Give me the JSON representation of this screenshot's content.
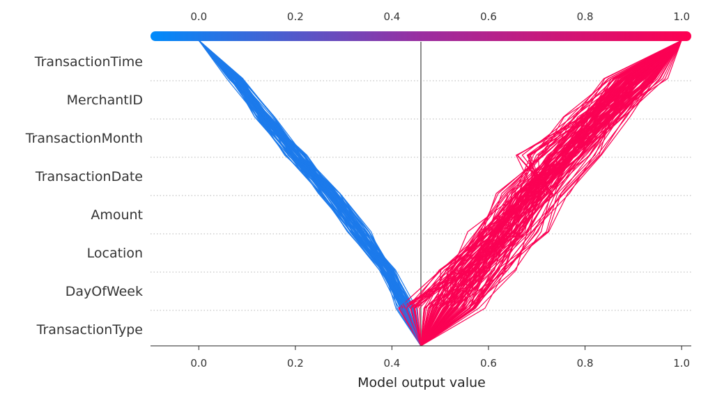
{
  "chart_data": {
    "type": "line",
    "subtype": "shap-decision-plot",
    "xlabel": "Model output value",
    "xlim": [
      -0.1,
      1.02
    ],
    "base_value": 0.46,
    "xticks": [
      0.0,
      0.2,
      0.4,
      0.6,
      0.8,
      1.0
    ],
    "xtick_labels": [
      "0.0",
      "0.2",
      "0.4",
      "0.6",
      "0.8",
      "1.0"
    ],
    "top_xtick_labels": [
      "0.0",
      "0.2",
      "0.4",
      "0.6",
      "0.8",
      "1.0"
    ],
    "colorbar": {
      "low_color": "#008bfb",
      "mid_color": "#9a2ea0",
      "high_color": "#ff0051",
      "range": [
        -0.1,
        1.02
      ],
      "position": "top"
    },
    "features_top_to_bottom": [
      "TransactionTime",
      "MerchantID",
      "TransactionMonth",
      "TransactionDate",
      "Amount",
      "Location",
      "DayOfWeek",
      "TransactionType"
    ],
    "path_point_order": "bottom (TransactionType) to top (TransactionTime): base, after TransactionType, DayOfWeek, Location, Amount, TransactionDate, TransactionMonth, MerchantID, TransactionTime",
    "representative_paths": {
      "low_class": [
        [
          0.46,
          0.43,
          0.39,
          0.33,
          0.27,
          0.2,
          0.135,
          0.075,
          0.0
        ],
        [
          0.46,
          0.435,
          0.395,
          0.34,
          0.28,
          0.21,
          0.14,
          0.08,
          0.0
        ],
        [
          0.46,
          0.425,
          0.385,
          0.325,
          0.265,
          0.195,
          0.13,
          0.072,
          0.0
        ],
        [
          0.46,
          0.44,
          0.4,
          0.345,
          0.285,
          0.215,
          0.145,
          0.082,
          0.0
        ],
        [
          0.46,
          0.42,
          0.38,
          0.32,
          0.26,
          0.19,
          0.125,
          0.068,
          0.0
        ],
        [
          0.46,
          0.432,
          0.392,
          0.336,
          0.276,
          0.206,
          0.138,
          0.078,
          0.0
        ]
      ],
      "high_class": [
        [
          0.46,
          0.51,
          0.56,
          0.62,
          0.67,
          0.74,
          0.82,
          0.9,
          1.0
        ],
        [
          0.46,
          0.53,
          0.58,
          0.64,
          0.69,
          0.76,
          0.83,
          0.91,
          1.0
        ],
        [
          0.46,
          0.49,
          0.54,
          0.6,
          0.66,
          0.73,
          0.8,
          0.88,
          1.0
        ],
        [
          0.46,
          0.52,
          0.59,
          0.66,
          0.72,
          0.78,
          0.85,
          0.92,
          1.0
        ],
        [
          0.46,
          0.5,
          0.55,
          0.61,
          0.68,
          0.75,
          0.81,
          0.89,
          1.0
        ],
        [
          0.46,
          0.43,
          0.52,
          0.6,
          0.68,
          0.76,
          0.82,
          0.9,
          1.0
        ],
        [
          0.46,
          0.44,
          0.55,
          0.66,
          0.72,
          0.79,
          0.86,
          0.93,
          1.0
        ],
        [
          0.46,
          0.55,
          0.62,
          0.67,
          0.72,
          0.68,
          0.79,
          0.88,
          1.0
        ],
        [
          0.46,
          0.57,
          0.64,
          0.7,
          0.75,
          0.81,
          0.87,
          0.94,
          1.0
        ],
        [
          0.46,
          0.48,
          0.52,
          0.58,
          0.64,
          0.71,
          0.78,
          0.86,
          1.0
        ],
        [
          0.46,
          0.54,
          0.6,
          0.65,
          0.7,
          0.77,
          0.84,
          0.9,
          1.0
        ],
        [
          0.46,
          0.5,
          0.57,
          0.63,
          0.69,
          0.77,
          0.86,
          0.95,
          1.0
        ]
      ]
    }
  }
}
